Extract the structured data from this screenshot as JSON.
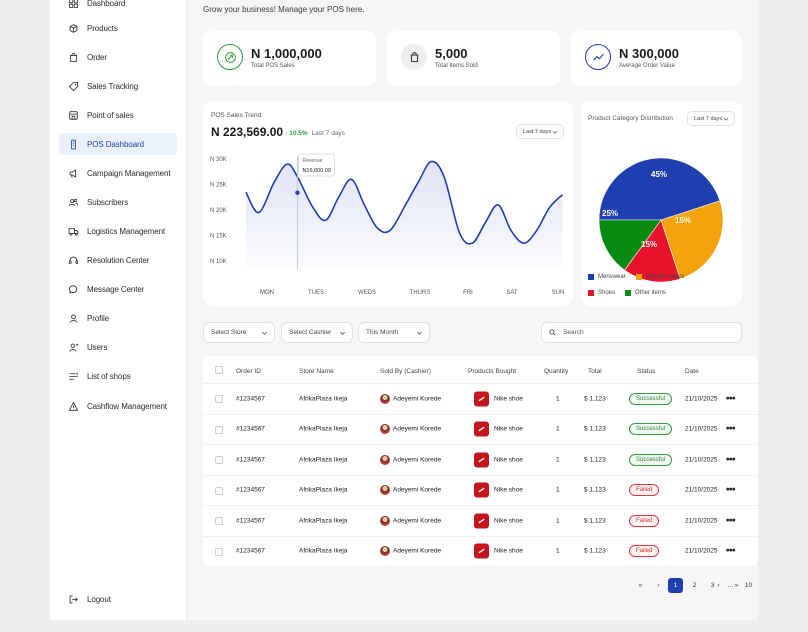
{
  "sidebar": {
    "items": [
      {
        "label": "Dashboard",
        "icon": "grid-icon",
        "active": false
      },
      {
        "label": "Products",
        "icon": "box-icon",
        "active": false
      },
      {
        "label": "Order",
        "icon": "bag-icon",
        "active": false
      },
      {
        "label": "Sales Tracking",
        "icon": "tag-icon",
        "active": false
      },
      {
        "label": "Point of sales",
        "icon": "store-icon",
        "active": false
      },
      {
        "label": "POS Dashboard",
        "icon": "pos-icon",
        "active": true
      },
      {
        "label": "Campaign Management",
        "icon": "campaign-icon",
        "active": false
      },
      {
        "label": "Subscribers",
        "icon": "users-icon",
        "active": false
      },
      {
        "label": "Logistics Management",
        "icon": "truck-icon",
        "active": false
      },
      {
        "label": "Resolution Center",
        "icon": "headset-icon",
        "active": false
      },
      {
        "label": "Message Center",
        "icon": "chat-icon",
        "active": false
      },
      {
        "label": "Profile",
        "icon": "user-icon",
        "active": false
      },
      {
        "label": "Users",
        "icon": "user-plus-icon",
        "active": false
      },
      {
        "label": "List of shops",
        "icon": "list-icon",
        "active": false
      },
      {
        "label": "Cashflow Management",
        "icon": "wallet-icon",
        "active": false
      }
    ],
    "logout": "Logout"
  },
  "header": {
    "greeting": "Grow your business! Manage your POS here."
  },
  "stats": [
    {
      "value": "N 1,000,000",
      "label": "Total POS Sales",
      "icon": "sales-icon"
    },
    {
      "value": "5,000",
      "label": "Total Items Sold",
      "icon": "bag-icon"
    },
    {
      "value": "N 300,000",
      "label": "Average Order Value",
      "icon": "trend-icon"
    }
  ],
  "trend": {
    "title": "POS Sales Trend",
    "total": "N 223,569.00",
    "change": "10.5%",
    "period": "Last 7 days",
    "dropdown": "Last 7 days",
    "tooltip_label": "Revenue",
    "tooltip_value": "N16,000.00"
  },
  "category": {
    "title": "Product Category Distribution",
    "dropdown": "Last 7 days"
  },
  "chart_data": [
    {
      "type": "line",
      "categories": [
        "MON",
        "TUES",
        "WEDS",
        "THURS",
        "FRI",
        "SAT",
        "SUN"
      ],
      "y_ticks": [
        "N 30K",
        "N 25K",
        "N 20K",
        "N 15K",
        "N 10K"
      ],
      "ylim": [
        10000,
        30000
      ],
      "series": [
        {
          "x": [
            0,
            0.25,
            0.55,
            0.8,
            1.0,
            1.3,
            1.55,
            1.8,
            2.05,
            2.3,
            2.55,
            2.8,
            3.1,
            3.35,
            3.6,
            3.85,
            4.15,
            4.4,
            4.65,
            4.9,
            5.15,
            5.4,
            5.65,
            5.9,
            6.15
          ],
          "values": [
            23500,
            19500,
            25500,
            29000,
            26500,
            20500,
            18000,
            22500,
            26000,
            21000,
            16500,
            16000,
            21000,
            25500,
            29500,
            26500,
            15500,
            13500,
            17500,
            21000,
            16000,
            13500,
            16000,
            20500,
            23000
          ]
        }
      ],
      "grid": false,
      "color": "#1f3fb0"
    },
    {
      "type": "pie",
      "categories": [
        "Menswear",
        "Women wears",
        "Shoes",
        "Other items"
      ],
      "values": [
        45,
        25,
        15,
        15
      ],
      "data_labels": [
        "45%",
        "25%",
        "15%",
        "15%"
      ],
      "colors": [
        "#1f3fb0",
        "#f5a30a",
        "#e8132b",
        "#0b8a12"
      ],
      "legend": "bottom"
    }
  ],
  "filters": {
    "store": "Select Store",
    "cashier": "Select Cashier",
    "period": "This Month",
    "search_placeholder": "Search"
  },
  "table": {
    "headers": [
      "Order ID",
      "Store Name",
      "Sold By (Cashier)",
      "Products Bought",
      "Quantity",
      "Total",
      "Status",
      "Date"
    ],
    "rows": [
      {
        "order_id": "#1234567",
        "store": "AfrikaPlaza Ikeja",
        "cashier": "Adeyemi Korede",
        "product": "Nike shoe",
        "qty": "1",
        "total": "$ 1,123",
        "status": "Successful",
        "status_type": "ok",
        "date": "21/10/2025"
      },
      {
        "order_id": "#1234567",
        "store": "AfrikaPlaza Ikeja",
        "cashier": "Adeyemi Korede",
        "product": "Nike shoe",
        "qty": "1",
        "total": "$ 1,123",
        "status": "Successful",
        "status_type": "ok",
        "date": "21/10/2025"
      },
      {
        "order_id": "#1234567",
        "store": "AfrikaPlaza Ikeja",
        "cashier": "Adeyemi Korede",
        "product": "Nike shoe",
        "qty": "1",
        "total": "$ 1,123",
        "status": "Successful",
        "status_type": "ok",
        "date": "21/10/2025"
      },
      {
        "order_id": "#1234567",
        "store": "AfrikaPlaza Ikeja",
        "cashier": "Adeyemi Korede",
        "product": "Nike shoe",
        "qty": "1",
        "total": "$ 1,123",
        "status": "Failed",
        "status_type": "fail",
        "date": "21/10/2025"
      },
      {
        "order_id": "#1234567",
        "store": "AfrikaPlaza Ikeja",
        "cashier": "Adeyemi Korede",
        "product": "Nike shoe",
        "qty": "1",
        "total": "$ 1,123",
        "status": "Failed",
        "status_type": "fail",
        "date": "21/10/2025"
      },
      {
        "order_id": "#1234567",
        "store": "AfrikaPlaza Ikeja",
        "cashier": "Adeyemi Korede",
        "product": "Nike shoe",
        "qty": "1",
        "total": "$ 1,123",
        "status": "Failed",
        "status_type": "fail",
        "date": "21/10/2025"
      }
    ],
    "more_label": "•••"
  },
  "pagination": {
    "first": "«",
    "prev": "‹",
    "pages": [
      "1",
      "2",
      "3",
      "...",
      "10"
    ],
    "current": "1",
    "next": "›",
    "last": "»"
  },
  "colors": {
    "accent": "#1f3fb0",
    "success": "#2e7d32",
    "danger": "#d32f2f",
    "up": "#2e9e3e"
  }
}
